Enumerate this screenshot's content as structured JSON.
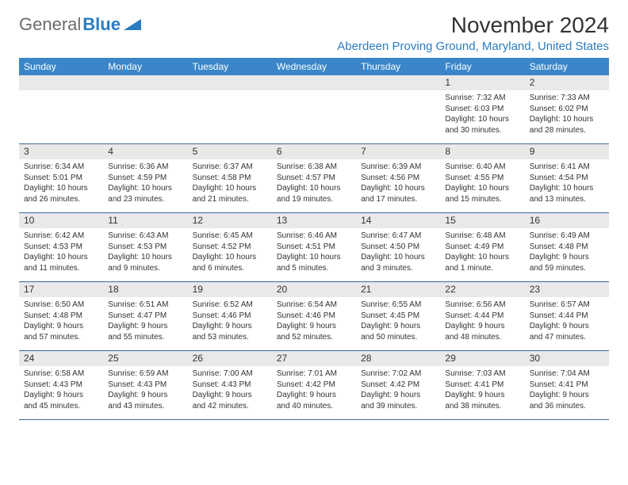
{
  "logo": {
    "gray": "General",
    "blue": "Blue"
  },
  "title": "November 2024",
  "location": "Aberdeen Proving Ground, Maryland, United States",
  "colors": {
    "header_bg": "#3a86c8",
    "accent": "#2a7cc2",
    "row_border": "#3a6a99",
    "daynum_bg": "#e9e9e9"
  },
  "dayHeaders": [
    "Sunday",
    "Monday",
    "Tuesday",
    "Wednesday",
    "Thursday",
    "Friday",
    "Saturday"
  ],
  "weeks": [
    [
      {
        "n": "",
        "sunrise": "",
        "sunset": "",
        "daylight1": "",
        "daylight2": ""
      },
      {
        "n": "",
        "sunrise": "",
        "sunset": "",
        "daylight1": "",
        "daylight2": ""
      },
      {
        "n": "",
        "sunrise": "",
        "sunset": "",
        "daylight1": "",
        "daylight2": ""
      },
      {
        "n": "",
        "sunrise": "",
        "sunset": "",
        "daylight1": "",
        "daylight2": ""
      },
      {
        "n": "",
        "sunrise": "",
        "sunset": "",
        "daylight1": "",
        "daylight2": ""
      },
      {
        "n": "1",
        "sunrise": "Sunrise: 7:32 AM",
        "sunset": "Sunset: 6:03 PM",
        "daylight1": "Daylight: 10 hours",
        "daylight2": "and 30 minutes."
      },
      {
        "n": "2",
        "sunrise": "Sunrise: 7:33 AM",
        "sunset": "Sunset: 6:02 PM",
        "daylight1": "Daylight: 10 hours",
        "daylight2": "and 28 minutes."
      }
    ],
    [
      {
        "n": "3",
        "sunrise": "Sunrise: 6:34 AM",
        "sunset": "Sunset: 5:01 PM",
        "daylight1": "Daylight: 10 hours",
        "daylight2": "and 26 minutes."
      },
      {
        "n": "4",
        "sunrise": "Sunrise: 6:36 AM",
        "sunset": "Sunset: 4:59 PM",
        "daylight1": "Daylight: 10 hours",
        "daylight2": "and 23 minutes."
      },
      {
        "n": "5",
        "sunrise": "Sunrise: 6:37 AM",
        "sunset": "Sunset: 4:58 PM",
        "daylight1": "Daylight: 10 hours",
        "daylight2": "and 21 minutes."
      },
      {
        "n": "6",
        "sunrise": "Sunrise: 6:38 AM",
        "sunset": "Sunset: 4:57 PM",
        "daylight1": "Daylight: 10 hours",
        "daylight2": "and 19 minutes."
      },
      {
        "n": "7",
        "sunrise": "Sunrise: 6:39 AM",
        "sunset": "Sunset: 4:56 PM",
        "daylight1": "Daylight: 10 hours",
        "daylight2": "and 17 minutes."
      },
      {
        "n": "8",
        "sunrise": "Sunrise: 6:40 AM",
        "sunset": "Sunset: 4:55 PM",
        "daylight1": "Daylight: 10 hours",
        "daylight2": "and 15 minutes."
      },
      {
        "n": "9",
        "sunrise": "Sunrise: 6:41 AM",
        "sunset": "Sunset: 4:54 PM",
        "daylight1": "Daylight: 10 hours",
        "daylight2": "and 13 minutes."
      }
    ],
    [
      {
        "n": "10",
        "sunrise": "Sunrise: 6:42 AM",
        "sunset": "Sunset: 4:53 PM",
        "daylight1": "Daylight: 10 hours",
        "daylight2": "and 11 minutes."
      },
      {
        "n": "11",
        "sunrise": "Sunrise: 6:43 AM",
        "sunset": "Sunset: 4:53 PM",
        "daylight1": "Daylight: 10 hours",
        "daylight2": "and 9 minutes."
      },
      {
        "n": "12",
        "sunrise": "Sunrise: 6:45 AM",
        "sunset": "Sunset: 4:52 PM",
        "daylight1": "Daylight: 10 hours",
        "daylight2": "and 6 minutes."
      },
      {
        "n": "13",
        "sunrise": "Sunrise: 6:46 AM",
        "sunset": "Sunset: 4:51 PM",
        "daylight1": "Daylight: 10 hours",
        "daylight2": "and 5 minutes."
      },
      {
        "n": "14",
        "sunrise": "Sunrise: 6:47 AM",
        "sunset": "Sunset: 4:50 PM",
        "daylight1": "Daylight: 10 hours",
        "daylight2": "and 3 minutes."
      },
      {
        "n": "15",
        "sunrise": "Sunrise: 6:48 AM",
        "sunset": "Sunset: 4:49 PM",
        "daylight1": "Daylight: 10 hours",
        "daylight2": "and 1 minute."
      },
      {
        "n": "16",
        "sunrise": "Sunrise: 6:49 AM",
        "sunset": "Sunset: 4:48 PM",
        "daylight1": "Daylight: 9 hours",
        "daylight2": "and 59 minutes."
      }
    ],
    [
      {
        "n": "17",
        "sunrise": "Sunrise: 6:50 AM",
        "sunset": "Sunset: 4:48 PM",
        "daylight1": "Daylight: 9 hours",
        "daylight2": "and 57 minutes."
      },
      {
        "n": "18",
        "sunrise": "Sunrise: 6:51 AM",
        "sunset": "Sunset: 4:47 PM",
        "daylight1": "Daylight: 9 hours",
        "daylight2": "and 55 minutes."
      },
      {
        "n": "19",
        "sunrise": "Sunrise: 6:52 AM",
        "sunset": "Sunset: 4:46 PM",
        "daylight1": "Daylight: 9 hours",
        "daylight2": "and 53 minutes."
      },
      {
        "n": "20",
        "sunrise": "Sunrise: 6:54 AM",
        "sunset": "Sunset: 4:46 PM",
        "daylight1": "Daylight: 9 hours",
        "daylight2": "and 52 minutes."
      },
      {
        "n": "21",
        "sunrise": "Sunrise: 6:55 AM",
        "sunset": "Sunset: 4:45 PM",
        "daylight1": "Daylight: 9 hours",
        "daylight2": "and 50 minutes."
      },
      {
        "n": "22",
        "sunrise": "Sunrise: 6:56 AM",
        "sunset": "Sunset: 4:44 PM",
        "daylight1": "Daylight: 9 hours",
        "daylight2": "and 48 minutes."
      },
      {
        "n": "23",
        "sunrise": "Sunrise: 6:57 AM",
        "sunset": "Sunset: 4:44 PM",
        "daylight1": "Daylight: 9 hours",
        "daylight2": "and 47 minutes."
      }
    ],
    [
      {
        "n": "24",
        "sunrise": "Sunrise: 6:58 AM",
        "sunset": "Sunset: 4:43 PM",
        "daylight1": "Daylight: 9 hours",
        "daylight2": "and 45 minutes."
      },
      {
        "n": "25",
        "sunrise": "Sunrise: 6:59 AM",
        "sunset": "Sunset: 4:43 PM",
        "daylight1": "Daylight: 9 hours",
        "daylight2": "and 43 minutes."
      },
      {
        "n": "26",
        "sunrise": "Sunrise: 7:00 AM",
        "sunset": "Sunset: 4:43 PM",
        "daylight1": "Daylight: 9 hours",
        "daylight2": "and 42 minutes."
      },
      {
        "n": "27",
        "sunrise": "Sunrise: 7:01 AM",
        "sunset": "Sunset: 4:42 PM",
        "daylight1": "Daylight: 9 hours",
        "daylight2": "and 40 minutes."
      },
      {
        "n": "28",
        "sunrise": "Sunrise: 7:02 AM",
        "sunset": "Sunset: 4:42 PM",
        "daylight1": "Daylight: 9 hours",
        "daylight2": "and 39 minutes."
      },
      {
        "n": "29",
        "sunrise": "Sunrise: 7:03 AM",
        "sunset": "Sunset: 4:41 PM",
        "daylight1": "Daylight: 9 hours",
        "daylight2": "and 38 minutes."
      },
      {
        "n": "30",
        "sunrise": "Sunrise: 7:04 AM",
        "sunset": "Sunset: 4:41 PM",
        "daylight1": "Daylight: 9 hours",
        "daylight2": "and 36 minutes."
      }
    ]
  ]
}
